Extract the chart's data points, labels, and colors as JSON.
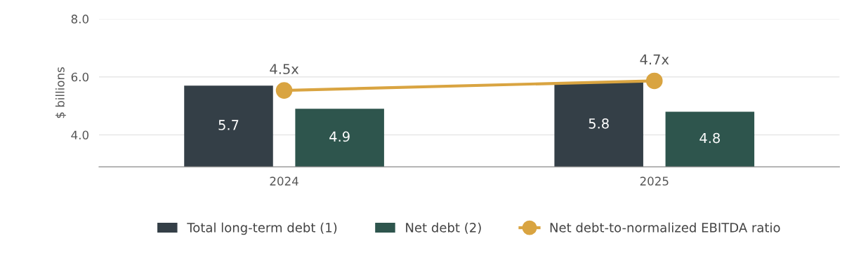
{
  "chart_data": {
    "type": "bar",
    "ylabel": "$ billions",
    "categories": [
      "2024",
      "2025"
    ],
    "ylim": [
      2.9,
      8.0
    ],
    "yticks": [
      {
        "value": 4,
        "label": "4.0"
      },
      {
        "value": 6,
        "label": "6.0"
      },
      {
        "value": 8,
        "label": "8.0"
      }
    ],
    "y2lim": [
      2.9,
      6.0
    ],
    "grid": "y",
    "legend": "bottom",
    "marker": "circle",
    "series": [
      {
        "name": "Total long-term debt (1)",
        "color": "#343f47",
        "values": [
          5.7,
          5.8
        ],
        "value_labels": [
          "5.7",
          "5.8"
        ]
      },
      {
        "name": "Net debt (2)",
        "color": "#2e554d",
        "values": [
          4.9,
          4.8
        ],
        "value_labels": [
          "4.9",
          "4.8"
        ]
      },
      {
        "name": "Net debt-to-normalized EBITDA ratio",
        "type": "line",
        "axis": "y2",
        "color": "#d9a441",
        "values": [
          4.5,
          4.7
        ],
        "value_labels": [
          "4.5x",
          "4.7x"
        ]
      }
    ]
  }
}
